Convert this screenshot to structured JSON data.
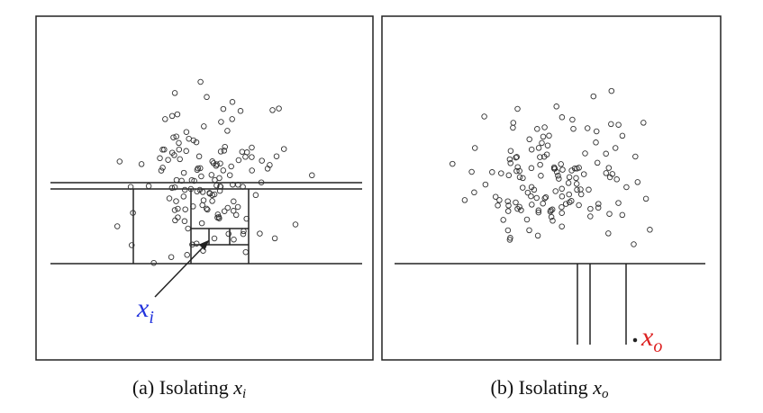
{
  "panels": [
    {
      "caption": "(a) Isolating",
      "caption_var": "x",
      "caption_sub": "i",
      "label": "x",
      "label_sub": "i"
    },
    {
      "caption": "(b) Isolating",
      "caption_var": "x",
      "caption_sub": "o",
      "label": "x",
      "label_sub": "o"
    }
  ]
}
